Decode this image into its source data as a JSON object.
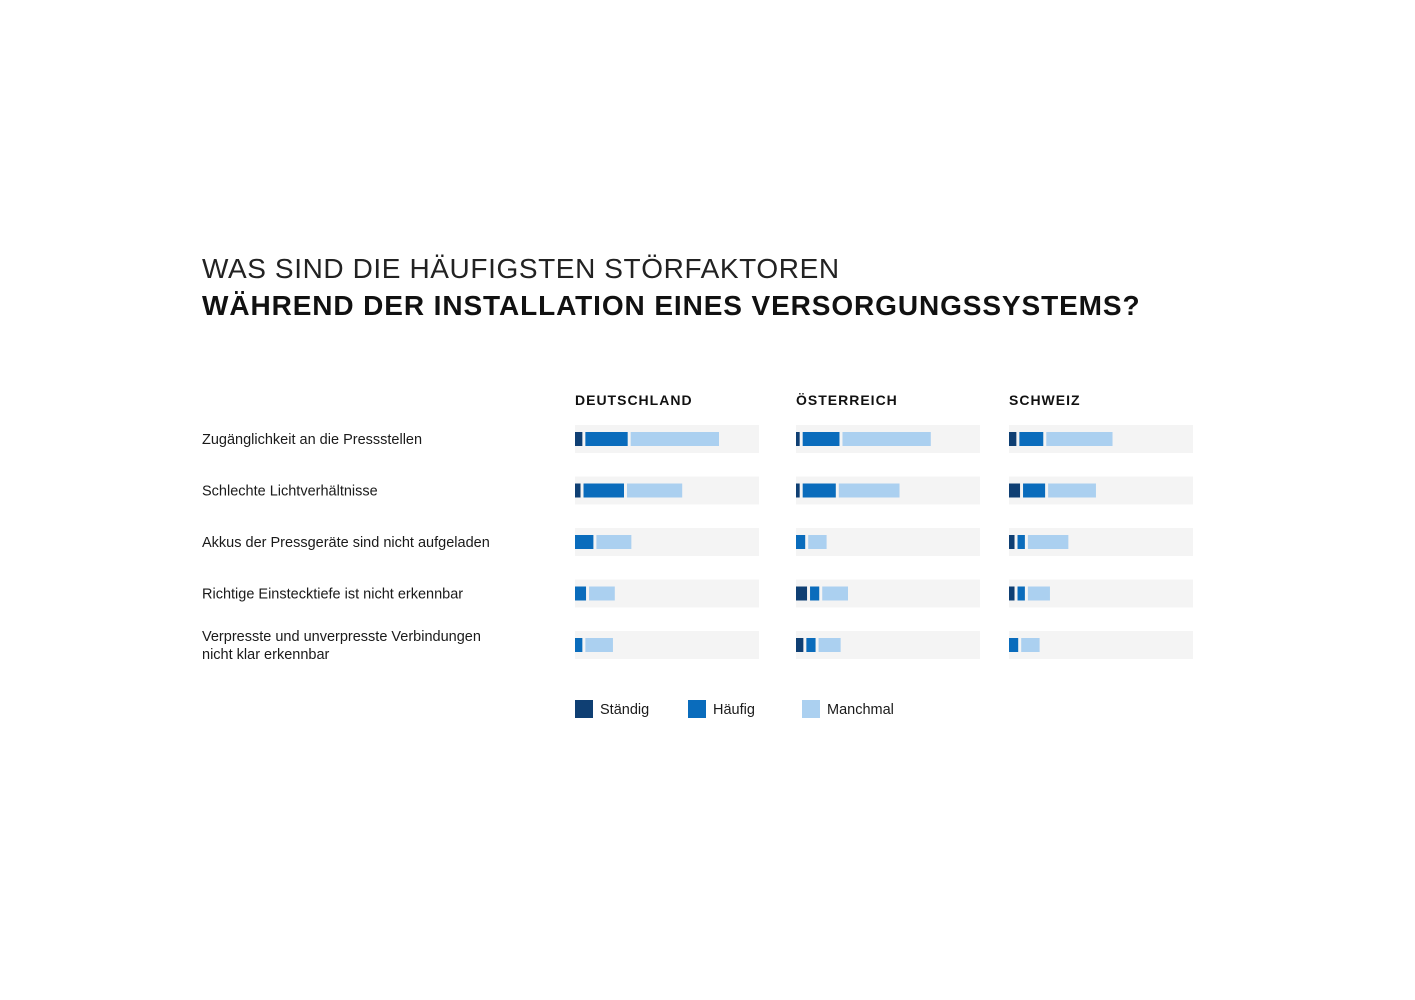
{
  "title": {
    "line1": "WAS SIND DIE HÄUFIGSTEN STÖRFAKTOREN",
    "line2": "WÄHREND DER INSTALLATION EINES VERSORGUNGSSYSTEMS?"
  },
  "colors": {
    "staendig": "#0f3f73",
    "haeufig": "#0a6cbc",
    "manchmal": "#abd0f0",
    "track": "#f4f4f4"
  },
  "chart_data": {
    "type": "bar",
    "stacked": true,
    "orientation": "horizontal",
    "value_max": 100,
    "categories": [
      [
        "Zugänglichkeit an die Pressstellen"
      ],
      [
        "Schlechte Lichtverhältnisse"
      ],
      [
        "Akkus der Pressgeräte sind nicht aufgeladen"
      ],
      [
        "Richtige Einstecktiefe ist nicht erkennbar"
      ],
      [
        "Verpresste und unverpresste Verbindungen",
        "nicht klar erkennbar"
      ]
    ],
    "groups": [
      {
        "name": "DEUTSCHLAND",
        "series": [
          {
            "name": "Ständig",
            "values": [
              4,
              3,
              0,
              0,
              0
            ]
          },
          {
            "name": "Häufig",
            "values": [
              23,
              22,
              10,
              6,
              4
            ]
          },
          {
            "name": "Manchmal",
            "values": [
              48,
              30,
              19,
              14,
              15
            ]
          }
        ]
      },
      {
        "name": "ÖSTERREICH",
        "series": [
          {
            "name": "Ständig",
            "values": [
              2,
              2,
              0,
              6,
              4
            ]
          },
          {
            "name": "Häufig",
            "values": [
              20,
              18,
              5,
              5,
              5
            ]
          },
          {
            "name": "Manchmal",
            "values": [
              48,
              33,
              10,
              14,
              12
            ]
          }
        ]
      },
      {
        "name": "SCHWEIZ",
        "series": [
          {
            "name": "Ständig",
            "values": [
              4,
              6,
              3,
              3,
              0
            ]
          },
          {
            "name": "Häufig",
            "values": [
              13,
              12,
              4,
              4,
              5
            ]
          },
          {
            "name": "Manchmal",
            "values": [
              36,
              26,
              22,
              12,
              10
            ]
          }
        ]
      }
    ],
    "legend": {
      "position": "bottom",
      "entries": [
        "Ständig",
        "Häufig",
        "Manchmal"
      ]
    }
  }
}
